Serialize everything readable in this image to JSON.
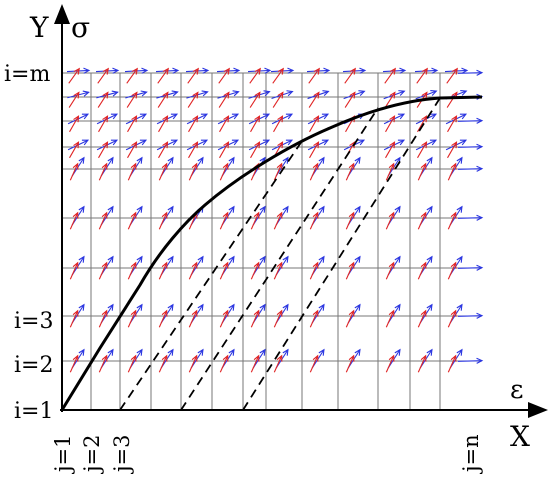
{
  "axes": {
    "y_label": "Y",
    "y_symbol": "σ",
    "x_label": "X",
    "x_symbol": "ε"
  },
  "row_labels": [
    "i=m",
    "i=3",
    "i=2",
    "i=1"
  ],
  "col_labels": [
    "j=1",
    "j=2",
    "j=3",
    "j=n"
  ],
  "colors": {
    "grid": "#777777",
    "curve": "#000000",
    "dashed": "#000000",
    "arrow_blue": "#2a35e0",
    "arrow_red": "#e02525"
  }
}
